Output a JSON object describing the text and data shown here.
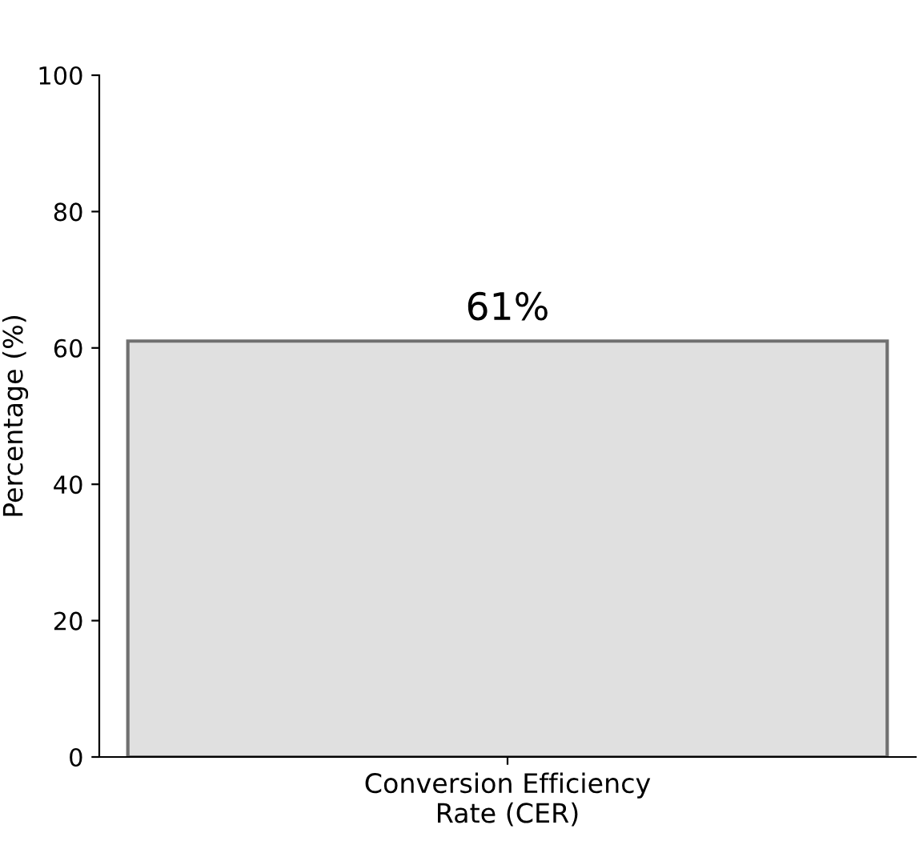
{
  "chart_data": {
    "type": "bar",
    "ylabel": "Percentage (%)",
    "categories": [
      "Conversion Efficiency\nRate (CER)"
    ],
    "values": [
      61
    ],
    "value_labels": [
      "61%"
    ],
    "color": "#e0e0e0",
    "ylim": [
      0,
      100
    ],
    "yticks": [
      0,
      20,
      40,
      60,
      80,
      100
    ],
    "grid": false,
    "legend": false
  }
}
